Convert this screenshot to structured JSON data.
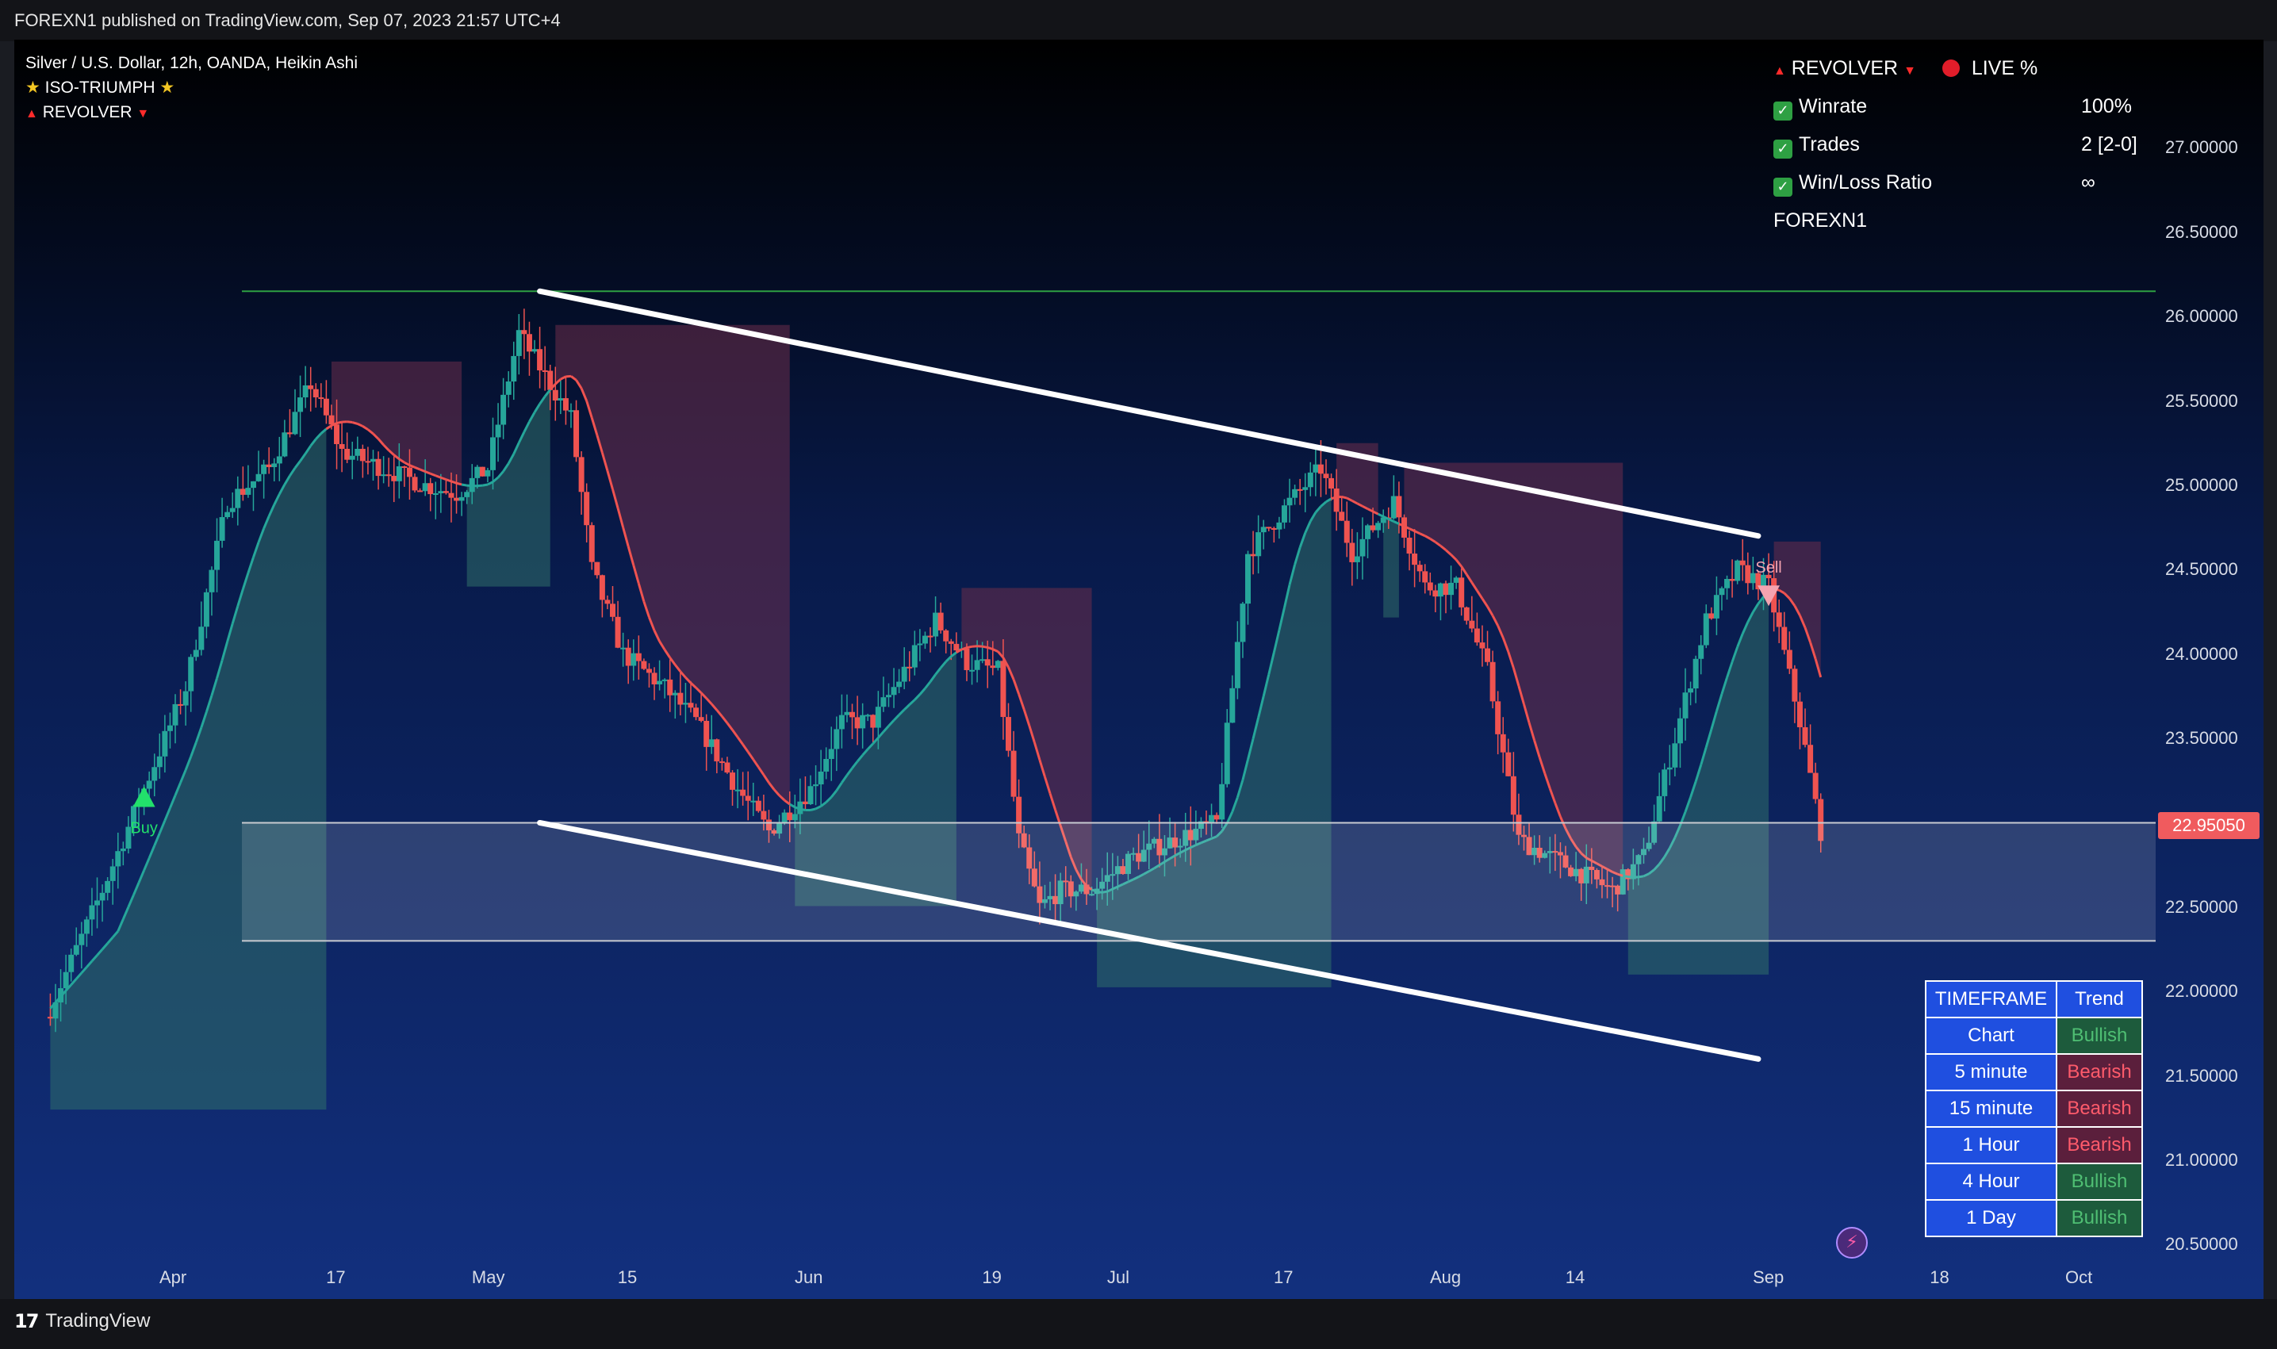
{
  "header": {
    "published_text": "FOREXN1 published on TradingView.com, Sep 07, 2023 21:57 UTC+4"
  },
  "footer": {
    "brand": "TradingView",
    "brand_mark": "17"
  },
  "legend": {
    "symbol_line": "Silver / U.S. Dollar, 12h, OANDA, Heikin Ashi",
    "indicator_1": "ISO-TRIUMPH",
    "indicator_2": "REVOLVER"
  },
  "stats_panel": {
    "title": "REVOLVER",
    "live_label": "LIVE %",
    "rows": [
      {
        "label": "Winrate",
        "value": "100%"
      },
      {
        "label": "Trades",
        "value": "2 [2-0]"
      },
      {
        "label": "Win/Loss Ratio",
        "value": "∞"
      }
    ],
    "author": "FOREXN1"
  },
  "chart_data": {
    "type": "candlestick",
    "symbol": "Silver / U.S. Dollar",
    "interval": "12h",
    "source": "OANDA",
    "style": "Heikin Ashi",
    "price_axis_labels": [
      "27.00000",
      "26.50000",
      "26.00000",
      "25.50000",
      "25.00000",
      "24.50000",
      "24.00000",
      "23.50000",
      "23.00000",
      "22.50000",
      "22.00000",
      "21.50000",
      "21.00000",
      "20.50000"
    ],
    "price_axis_values": [
      27.0,
      26.5,
      26.0,
      25.5,
      25.0,
      24.5,
      24.0,
      23.5,
      23.0,
      22.5,
      22.0,
      21.5,
      21.0,
      20.5
    ],
    "time_axis_labels": [
      "Apr",
      "17",
      "May",
      "15",
      "Jun",
      "19",
      "Jul",
      "17",
      "Aug",
      "14",
      "Sep",
      "18",
      "Oct"
    ],
    "ylim": [
      20.45,
      27.5
    ],
    "last_price": "22.95050",
    "horizontal_levels": [
      26.15,
      23.0,
      22.3
    ],
    "channel_upper": {
      "start": [
        "May 06",
        26.15
      ],
      "end": [
        "Aug 31",
        24.7
      ]
    },
    "channel_lower": {
      "start": [
        "May 06",
        23.0
      ],
      "end": [
        "Aug 31",
        21.6
      ]
    },
    "signals": [
      {
        "label": "Buy",
        "date": "Mar 29",
        "price": 23.15
      },
      {
        "label": "Sell",
        "date": "Sep 01",
        "price": 24.35
      }
    ],
    "close_path": [
      [
        "Mar 20",
        21.9
      ],
      [
        "Mar 25",
        22.6
      ],
      [
        "Mar 29",
        23.2
      ],
      [
        "Apr 02",
        23.8
      ],
      [
        "Apr 06",
        24.9
      ],
      [
        "Apr 10",
        25.1
      ],
      [
        "Apr 14",
        25.6
      ],
      [
        "Apr 17",
        25.2
      ],
      [
        "Apr 21",
        25.1
      ],
      [
        "Apr 25",
        25.0
      ],
      [
        "Apr 28",
        24.95
      ],
      [
        "May 01",
        25.1
      ],
      [
        "May 04",
        25.9
      ],
      [
        "May 06",
        25.7
      ],
      [
        "May 09",
        25.4
      ],
      [
        "May 11",
        24.5
      ],
      [
        "May 14",
        24.0
      ],
      [
        "May 18",
        23.8
      ],
      [
        "May 21",
        23.6
      ],
      [
        "May 25",
        23.2
      ],
      [
        "May 28",
        22.95
      ],
      [
        "Jun 01",
        23.2
      ],
      [
        "Jun 04",
        23.6
      ],
      [
        "Jun 07",
        23.6
      ],
      [
        "Jun 10",
        23.9
      ],
      [
        "Jun 13",
        24.2
      ],
      [
        "Jun 16",
        23.95
      ],
      [
        "Jun 19",
        23.9
      ],
      [
        "Jun 21",
        22.9
      ],
      [
        "Jun 23",
        22.5
      ],
      [
        "Jun 25",
        22.6
      ],
      [
        "Jun 28",
        22.6
      ],
      [
        "Jul 02",
        22.8
      ],
      [
        "Jul 06",
        22.9
      ],
      [
        "Jul 10",
        23.0
      ],
      [
        "Jul 13",
        24.6
      ],
      [
        "Jul 17",
        24.9
      ],
      [
        "Jul 20",
        25.1
      ],
      [
        "Jul 23",
        24.6
      ],
      [
        "Jul 27",
        24.9
      ],
      [
        "Jul 30",
        24.4
      ],
      [
        "Aug 02",
        24.4
      ],
      [
        "Aug 05",
        23.9
      ],
      [
        "Aug 08",
        22.9
      ],
      [
        "Aug 11",
        22.8
      ],
      [
        "Aug 14",
        22.7
      ],
      [
        "Aug 17",
        22.6
      ],
      [
        "Aug 20",
        22.8
      ],
      [
        "Aug 23",
        23.5
      ],
      [
        "Aug 26",
        24.2
      ],
      [
        "Aug 29",
        24.5
      ],
      [
        "Sep 01",
        24.4
      ],
      [
        "Sep 04",
        23.6
      ],
      [
        "Sep 06",
        22.95
      ]
    ]
  },
  "trend_table": {
    "header": {
      "timeframe": "TIMEFRAME",
      "trend": "Trend"
    },
    "rows": [
      {
        "timeframe": "Chart",
        "trend": "Bullish"
      },
      {
        "timeframe": "5 minute",
        "trend": "Bearish"
      },
      {
        "timeframe": "15 minute",
        "trend": "Bearish"
      },
      {
        "timeframe": "1 Hour",
        "trend": "Bearish"
      },
      {
        "timeframe": "4 Hour",
        "trend": "Bullish"
      },
      {
        "timeframe": "1 Day",
        "trend": "Bullish"
      }
    ]
  },
  "colors": {
    "bull": "#26a69a",
    "bear": "#ef5350",
    "cloud_bull": "#2f6f6a",
    "cloud_bear": "#6b2e4a",
    "channel": "#ffffff",
    "level_top": "#2ea043",
    "price_tag": "#f05b5e",
    "table_header": "#1f4fe0"
  }
}
